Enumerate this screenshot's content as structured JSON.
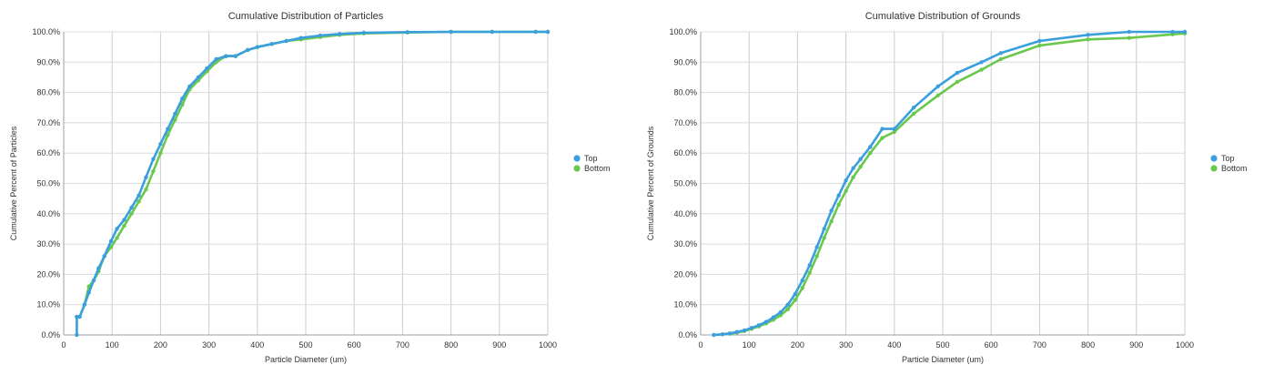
{
  "chart_data": [
    {
      "type": "line",
      "title": "Cumulative Distribution of Particles",
      "xlabel": "Particle Diameter (um)",
      "ylabel": "Cumulative Percent of Particles",
      "xlim": [
        0,
        1000
      ],
      "ylim": [
        0,
        100
      ],
      "x_ticks": [
        "0",
        "100",
        "200",
        "300",
        "400",
        "500",
        "600",
        "700",
        "800",
        "900",
        "1000"
      ],
      "y_ticks": [
        "0.0%",
        "10.0%",
        "20.0%",
        "30.0%",
        "40.0%",
        "50.0%",
        "60.0%",
        "70.0%",
        "80.0%",
        "90.0%",
        "100.0%"
      ],
      "grid": true,
      "legend_position": "right",
      "series": [
        {
          "name": "Top",
          "color": "#3a9fdc",
          "x": [
            27,
            27,
            33,
            43,
            52,
            62,
            72,
            84,
            98,
            110,
            125,
            140,
            155,
            170,
            185,
            200,
            215,
            230,
            245,
            260,
            278,
            296,
            315,
            335,
            355,
            380,
            400,
            430,
            460,
            490,
            530,
            570,
            620,
            710,
            800,
            885,
            975,
            1000
          ],
          "y": [
            0,
            6,
            6,
            10,
            14,
            18,
            22,
            26,
            31,
            35,
            38,
            42,
            46,
            52,
            58,
            63,
            68,
            73,
            78,
            82,
            85,
            88,
            91,
            92,
            92,
            94,
            95,
            96,
            97,
            98,
            98.8,
            99.3,
            99.7,
            99.9,
            100,
            100,
            100,
            100
          ]
        },
        {
          "name": "Bottom",
          "color": "#6ac84e",
          "x": [
            27,
            33,
            43,
            52,
            62,
            72,
            84,
            98,
            110,
            125,
            140,
            155,
            170,
            185,
            200,
            215,
            230,
            245,
            260,
            278,
            296,
            315,
            335,
            355,
            380,
            400,
            430,
            460,
            490,
            530,
            570,
            620,
            710,
            800,
            885,
            975,
            1000
          ],
          "y": [
            6,
            6,
            10,
            16,
            18,
            21,
            26,
            29,
            32,
            36,
            40,
            44,
            48,
            54,
            60,
            66,
            71,
            76,
            81,
            84,
            87,
            90,
            92,
            92,
            94,
            95,
            96,
            97,
            97.5,
            98.3,
            99,
            99.5,
            99.8,
            100,
            100,
            100,
            100
          ]
        }
      ]
    },
    {
      "type": "line",
      "title": "Cumulative Distribution of Grounds",
      "xlabel": "Particle Diameter (um)",
      "ylabel": "Cumulative Percent of Grounds",
      "xlim": [
        0,
        1000
      ],
      "ylim": [
        0,
        100
      ],
      "x_ticks": [
        "0",
        "100",
        "200",
        "300",
        "400",
        "500",
        "600",
        "700",
        "800",
        "900",
        "1000"
      ],
      "y_ticks": [
        "0.0%",
        "10.0%",
        "20.0%",
        "30.0%",
        "40.0%",
        "50.0%",
        "60.0%",
        "70.0%",
        "80.0%",
        "90.0%",
        "100.0%"
      ],
      "grid": true,
      "legend_position": "right",
      "series": [
        {
          "name": "Top",
          "color": "#3a9fdc",
          "x": [
            27,
            45,
            60,
            75,
            90,
            105,
            120,
            135,
            150,
            165,
            180,
            195,
            210,
            225,
            240,
            255,
            270,
            285,
            300,
            315,
            330,
            350,
            375,
            400,
            440,
            490,
            530,
            580,
            620,
            700,
            800,
            885,
            975,
            1000
          ],
          "y": [
            0,
            0.2,
            0.5,
            1,
            1.5,
            2.3,
            3.2,
            4.3,
            5.8,
            7.5,
            10,
            13.5,
            18,
            23,
            29,
            35,
            41,
            46,
            51,
            55,
            58,
            62,
            68,
            68,
            75,
            82,
            86.5,
            90,
            93,
            97,
            99,
            100,
            100,
            100
          ]
        },
        {
          "name": "Bottom",
          "color": "#6ac84e",
          "x": [
            27,
            45,
            60,
            75,
            90,
            105,
            120,
            135,
            150,
            165,
            180,
            195,
            210,
            225,
            240,
            255,
            270,
            285,
            300,
            315,
            330,
            350,
            375,
            400,
            440,
            490,
            530,
            580,
            620,
            700,
            800,
            885,
            975,
            1000
          ],
          "y": [
            0,
            0.2,
            0.4,
            0.8,
            1.3,
            2,
            2.8,
            3.8,
            5,
            6.5,
            8.5,
            11.5,
            15.5,
            20.5,
            26,
            32,
            37.5,
            43,
            47.5,
            52,
            55.5,
            60,
            65,
            67,
            73,
            79,
            83.5,
            87.5,
            91,
            95.5,
            97.5,
            98,
            99.2,
            99.5
          ]
        }
      ]
    }
  ]
}
